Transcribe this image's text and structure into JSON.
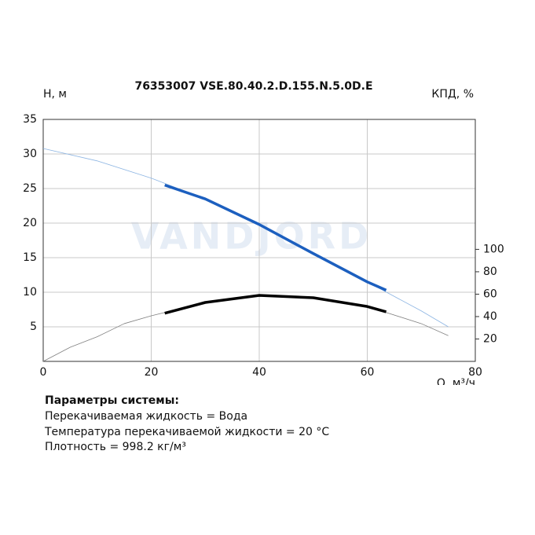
{
  "chart_data": {
    "type": "line",
    "title": "76353007 VSE.80.40.2.D.155.N.5.0D.E",
    "y_label": "H, м",
    "y2_label": "КПД, %",
    "x_label": "Q, м³/ч",
    "watermark": "VANDJORD",
    "xlim": [
      0,
      80
    ],
    "xticks": [
      0,
      20,
      40,
      60,
      80
    ],
    "ylim": [
      0,
      35
    ],
    "yticks": [
      5,
      10,
      15,
      20,
      25,
      30,
      35
    ],
    "y2lim": [
      0,
      216
    ],
    "y2ticks": [
      20,
      40,
      60,
      80,
      100
    ],
    "grid": true,
    "series": [
      {
        "color": "#8db5e3",
        "x": [
          0,
          10,
          20,
          30,
          40,
          50,
          60,
          70,
          75
        ],
        "values": [
          30.8,
          29,
          26.5,
          23.5,
          19.8,
          15.6,
          11.5,
          7.3,
          5
        ]
      },
      {
        "color": "#1c5fbf",
        "x": [
          22.5,
          30,
          40,
          50,
          60,
          63.5
        ],
        "values": [
          25.5,
          23.5,
          19.8,
          15.6,
          11.5,
          10.3
        ]
      },
      {
        "color": "#808080",
        "axis": "y2",
        "x": [
          0,
          5,
          10,
          15,
          20,
          30,
          40,
          50,
          60,
          70,
          75
        ],
        "values": [
          0,
          12.6,
          22,
          33.7,
          40.7,
          52.6,
          58.9,
          56.8,
          49,
          33.7,
          23
        ]
      },
      {
        "color": "#000000",
        "axis": "y2",
        "x": [
          22.5,
          30,
          40,
          50,
          60,
          63.5
        ],
        "values": [
          43,
          52.6,
          58.9,
          56.8,
          49,
          44.2
        ]
      }
    ]
  },
  "parameters": {
    "title": "Параметры системы:",
    "lines": [
      "Перекачиваемая жидкость = Вода",
      "Температура перекачиваемой жидкости = 20 °C",
      "Плотность = 998.2 кг/м³"
    ]
  }
}
